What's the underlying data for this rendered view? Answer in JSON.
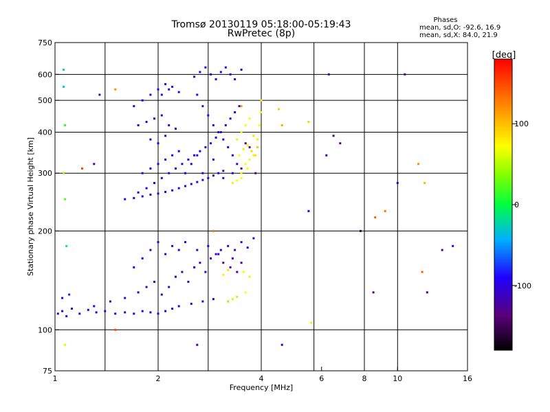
{
  "chart_data": {
    "type": "scatter",
    "title": "Tromsø 20130119 05:18:00-05:19:43",
    "subtitle": "RwPretec (8p)",
    "stats": {
      "heading": "Phases",
      "line1": "mean, sd,O: -92.6, 16.9",
      "line2": "mean, sd,X:  84.0, 21.9"
    },
    "xlabel": "Frequency [MHz]",
    "ylabel": "Stationary phase Virtual Height [km]",
    "x_scale": "log",
    "y_scale": "log",
    "xlim": [
      1,
      16
    ],
    "ylim": [
      75,
      750
    ],
    "grid": true,
    "x_ticks": [
      {
        "value": 1,
        "label": "1"
      },
      {
        "value": 2,
        "label": "2"
      },
      {
        "value": 4,
        "label": "4"
      },
      {
        "value": 6,
        "label": "6"
      },
      {
        "value": 8,
        "label": "8"
      },
      {
        "value": 10,
        "label": "10"
      },
      {
        "value": 16,
        "label": "16"
      }
    ],
    "x_grid": [
      1.4,
      2,
      2.8,
      4,
      5.7,
      8,
      10
    ],
    "y_ticks": [
      {
        "value": 75,
        "label": "75"
      },
      {
        "value": 100,
        "label": "100"
      },
      {
        "value": 200,
        "label": "200"
      },
      {
        "value": 300,
        "label": "300"
      },
      {
        "value": 400,
        "label": "400"
      },
      {
        "value": 500,
        "label": "500"
      },
      {
        "value": 600,
        "label": "600"
      },
      {
        "value": 750,
        "label": "750"
      }
    ],
    "y_grid": [
      100,
      200,
      300,
      400,
      500,
      600
    ],
    "colorbar": {
      "label": "[deg]",
      "range": [
        -180,
        180
      ],
      "ticks": [
        {
          "value": 100,
          "label": "100"
        },
        {
          "value": 0,
          "label": "0"
        },
        {
          "value": -100,
          "label": "-100"
        }
      ]
    },
    "series": [
      {
        "points": [
          [
            1.02,
            112,
            -95
          ],
          [
            1.05,
            114,
            -100
          ],
          [
            1.08,
            110,
            -95
          ],
          [
            1.12,
            116,
            -105
          ],
          [
            1.18,
            112,
            -90
          ],
          [
            1.25,
            115,
            -100
          ],
          [
            1.32,
            113,
            -95
          ],
          [
            1.4,
            114,
            -100
          ],
          [
            1.5,
            112,
            -95
          ],
          [
            1.6,
            113,
            -100
          ],
          [
            1.7,
            112,
            -95
          ],
          [
            1.8,
            114,
            -100
          ],
          [
            1.9,
            113,
            -95
          ],
          [
            2.0,
            112,
            -100
          ],
          [
            2.1,
            114,
            -95
          ],
          [
            2.2,
            116,
            -100
          ],
          [
            2.3,
            118,
            -110
          ],
          [
            2.5,
            120,
            -105
          ],
          [
            2.7,
            122,
            -100
          ],
          [
            2.9,
            124,
            -95
          ],
          [
            1.05,
            125,
            -90
          ],
          [
            1.1,
            128,
            -80
          ],
          [
            1.3,
            118,
            -100
          ],
          [
            1.45,
            122,
            -110
          ],
          [
            1.6,
            125,
            -105
          ],
          [
            1.75,
            130,
            -100
          ],
          [
            1.85,
            135,
            -115
          ],
          [
            1.95,
            140,
            -100
          ],
          [
            2.05,
            128,
            -105
          ],
          [
            2.15,
            135,
            -110
          ],
          [
            2.25,
            145,
            -100
          ],
          [
            2.35,
            150,
            -105
          ],
          [
            2.45,
            140,
            -110
          ],
          [
            2.55,
            155,
            -100
          ],
          [
            2.65,
            160,
            -115
          ],
          [
            2.75,
            150,
            -100
          ],
          [
            2.85,
            165,
            -110
          ],
          [
            2.95,
            170,
            -120
          ],
          [
            3.05,
            175,
            -115
          ],
          [
            3.2,
            180,
            -110
          ],
          [
            3.35,
            175,
            -120
          ],
          [
            3.5,
            185,
            -100
          ],
          [
            3.65,
            178,
            -90
          ],
          [
            3.8,
            190,
            -100
          ],
          [
            1.7,
            155,
            -100
          ],
          [
            1.8,
            165,
            -95
          ],
          [
            1.9,
            175,
            -110
          ],
          [
            2.0,
            185,
            -100
          ],
          [
            2.1,
            170,
            -105
          ],
          [
            2.2,
            180,
            -110
          ],
          [
            2.3,
            175,
            -100
          ],
          [
            2.4,
            185,
            -95
          ],
          [
            2.6,
            175,
            -105
          ],
          [
            2.8,
            180,
            -100
          ],
          [
            3.0,
            170,
            -95
          ],
          [
            3.3,
            165,
            -110
          ],
          [
            3.5,
            160,
            -125
          ],
          [
            3.1,
            160,
            -130
          ],
          [
            3.25,
            155,
            -125
          ],
          [
            3.4,
            150,
            -120
          ],
          [
            3.2,
            122,
            40
          ],
          [
            3.3,
            124,
            60
          ],
          [
            3.4,
            126,
            50
          ],
          [
            3.6,
            130,
            70
          ],
          [
            3.7,
            145,
            80
          ],
          [
            3.55,
            150,
            75
          ],
          [
            3.1,
            147,
            80
          ],
          [
            3.2,
            152,
            85
          ],
          [
            1.6,
            250,
            -100
          ],
          [
            1.7,
            252,
            -105
          ],
          [
            1.8,
            255,
            -95
          ],
          [
            1.9,
            258,
            -100
          ],
          [
            2.0,
            260,
            -105
          ],
          [
            2.1,
            263,
            -100
          ],
          [
            2.2,
            266,
            -95
          ],
          [
            2.3,
            270,
            -100
          ],
          [
            2.4,
            274,
            -105
          ],
          [
            2.5,
            278,
            -100
          ],
          [
            2.6,
            282,
            -95
          ],
          [
            2.7,
            286,
            -100
          ],
          [
            2.8,
            290,
            -105
          ],
          [
            2.9,
            295,
            -100
          ],
          [
            3.0,
            300,
            -95
          ],
          [
            3.1,
            305,
            -110
          ],
          [
            1.75,
            262,
            -100
          ],
          [
            1.85,
            270,
            -95
          ],
          [
            1.95,
            280,
            -100
          ],
          [
            2.05,
            290,
            -105
          ],
          [
            2.15,
            300,
            -100
          ],
          [
            2.25,
            310,
            -110
          ],
          [
            2.35,
            320,
            -100
          ],
          [
            2.45,
            330,
            -95
          ],
          [
            2.55,
            340,
            -100
          ],
          [
            2.65,
            350,
            -105
          ],
          [
            2.75,
            360,
            -100
          ],
          [
            2.85,
            370,
            -95
          ],
          [
            2.95,
            385,
            -100
          ],
          [
            3.05,
            400,
            -105
          ],
          [
            3.15,
            420,
            -110
          ],
          [
            3.25,
            440,
            -100
          ],
          [
            3.35,
            460,
            -95
          ],
          [
            3.45,
            480,
            -100
          ],
          [
            1.8,
            300,
            -100
          ],
          [
            1.9,
            310,
            -95
          ],
          [
            2.0,
            320,
            -100
          ],
          [
            2.1,
            330,
            -105
          ],
          [
            2.2,
            340,
            -100
          ],
          [
            2.3,
            350,
            -95
          ],
          [
            1.75,
            420,
            -100
          ],
          [
            1.85,
            430,
            -105
          ],
          [
            1.95,
            440,
            -100
          ],
          [
            2.05,
            450,
            -95
          ],
          [
            2.15,
            420,
            -100
          ],
          [
            2.25,
            410,
            -105
          ],
          [
            1.9,
            380,
            -100
          ],
          [
            2.0,
            370,
            -95
          ],
          [
            2.1,
            390,
            -100
          ],
          [
            1.7,
            480,
            -105
          ],
          [
            1.8,
            500,
            -100
          ],
          [
            1.9,
            520,
            -95
          ],
          [
            2.0,
            540,
            -100
          ],
          [
            2.1,
            560,
            -105
          ],
          [
            2.2,
            550,
            -100
          ],
          [
            2.3,
            530,
            -95
          ],
          [
            2.05,
            520,
            -100
          ],
          [
            2.15,
            540,
            -105
          ],
          [
            2.55,
            590,
            -100
          ],
          [
            2.65,
            610,
            -95
          ],
          [
            2.75,
            630,
            -100
          ],
          [
            2.85,
            600,
            -105
          ],
          [
            2.95,
            580,
            -100
          ],
          [
            3.05,
            610,
            -95
          ],
          [
            3.15,
            630,
            -100
          ],
          [
            3.25,
            600,
            -105
          ],
          [
            3.35,
            580,
            -100
          ],
          [
            3.5,
            620,
            -110
          ],
          [
            2.6,
            520,
            -100
          ],
          [
            2.7,
            480,
            -105
          ],
          [
            2.8,
            450,
            -100
          ],
          [
            2.9,
            420,
            -95
          ],
          [
            3.0,
            400,
            -100
          ],
          [
            3.1,
            380,
            -105
          ],
          [
            3.2,
            360,
            -100
          ],
          [
            3.3,
            340,
            -95
          ],
          [
            3.4,
            320,
            -110
          ],
          [
            3.5,
            310,
            -115
          ],
          [
            2.4,
            300,
            -100
          ],
          [
            2.5,
            320,
            -105
          ],
          [
            2.6,
            340,
            -100
          ],
          [
            2.7,
            300,
            -95
          ],
          [
            2.9,
            330,
            -100
          ],
          [
            3.1,
            290,
            -105
          ],
          [
            3.3,
            300,
            -100
          ],
          [
            3.45,
            340,
            70
          ],
          [
            3.55,
            355,
            80
          ],
          [
            3.65,
            365,
            75
          ],
          [
            3.75,
            350,
            90
          ],
          [
            3.85,
            340,
            85
          ],
          [
            3.9,
            380,
            80
          ],
          [
            3.95,
            420,
            75
          ],
          [
            3.98,
            460,
            70
          ],
          [
            4.0,
            500,
            75
          ],
          [
            3.6,
            320,
            70
          ],
          [
            3.7,
            330,
            75
          ],
          [
            3.8,
            340,
            80
          ],
          [
            3.5,
            300,
            70
          ],
          [
            3.65,
            310,
            75
          ],
          [
            3.4,
            380,
            60
          ],
          [
            3.5,
            400,
            65
          ],
          [
            3.6,
            420,
            70
          ],
          [
            3.7,
            440,
            75
          ],
          [
            3.8,
            390,
            85
          ],
          [
            3.9,
            360,
            95
          ],
          [
            3.3,
            280,
            80
          ],
          [
            3.4,
            285,
            75
          ],
          [
            3.5,
            290,
            70
          ],
          [
            3.85,
            300,
            -125
          ],
          [
            3.7,
            360,
            -130
          ],
          [
            3.6,
            370,
            -135
          ],
          [
            1.06,
            550,
            -30
          ],
          [
            1.07,
            420,
            10
          ],
          [
            1.06,
            300,
            40
          ],
          [
            1.07,
            250,
            20
          ],
          [
            1.08,
            180,
            -10
          ],
          [
            1.06,
            620,
            -20
          ],
          [
            1.07,
            90,
            60
          ],
          [
            1.5,
            540,
            120
          ],
          [
            2.9,
            200,
            130
          ],
          [
            3.5,
            480,
            110
          ],
          [
            4.5,
            470,
            95
          ],
          [
            4.6,
            420,
            110
          ],
          [
            5.5,
            430,
            90
          ],
          [
            6.3,
            600,
            -120
          ],
          [
            6.2,
            340,
            -110
          ],
          [
            6.5,
            390,
            -130
          ],
          [
            6.8,
            370,
            -140
          ],
          [
            7.8,
            200,
            -150
          ],
          [
            8.5,
            130,
            -135
          ],
          [
            10.0,
            280,
            -110
          ],
          [
            10.5,
            600,
            -130
          ],
          [
            11.5,
            320,
            120
          ],
          [
            12.0,
            280,
            100
          ],
          [
            12.2,
            130,
            -120
          ],
          [
            13.5,
            175,
            -125
          ],
          [
            14.5,
            180,
            -100
          ],
          [
            8.6,
            220,
            140
          ],
          [
            11.8,
            150,
            140
          ],
          [
            9.2,
            230,
            130
          ],
          [
            5.5,
            230,
            -90
          ],
          [
            5.6,
            105,
            80
          ],
          [
            4.6,
            90,
            -110
          ],
          [
            2.6,
            90,
            -120
          ],
          [
            1.5,
            100,
            150
          ],
          [
            1.2,
            310,
            150
          ],
          [
            1.3,
            320,
            -120
          ],
          [
            1.35,
            520,
            -110
          ]
        ]
      }
    ]
  }
}
